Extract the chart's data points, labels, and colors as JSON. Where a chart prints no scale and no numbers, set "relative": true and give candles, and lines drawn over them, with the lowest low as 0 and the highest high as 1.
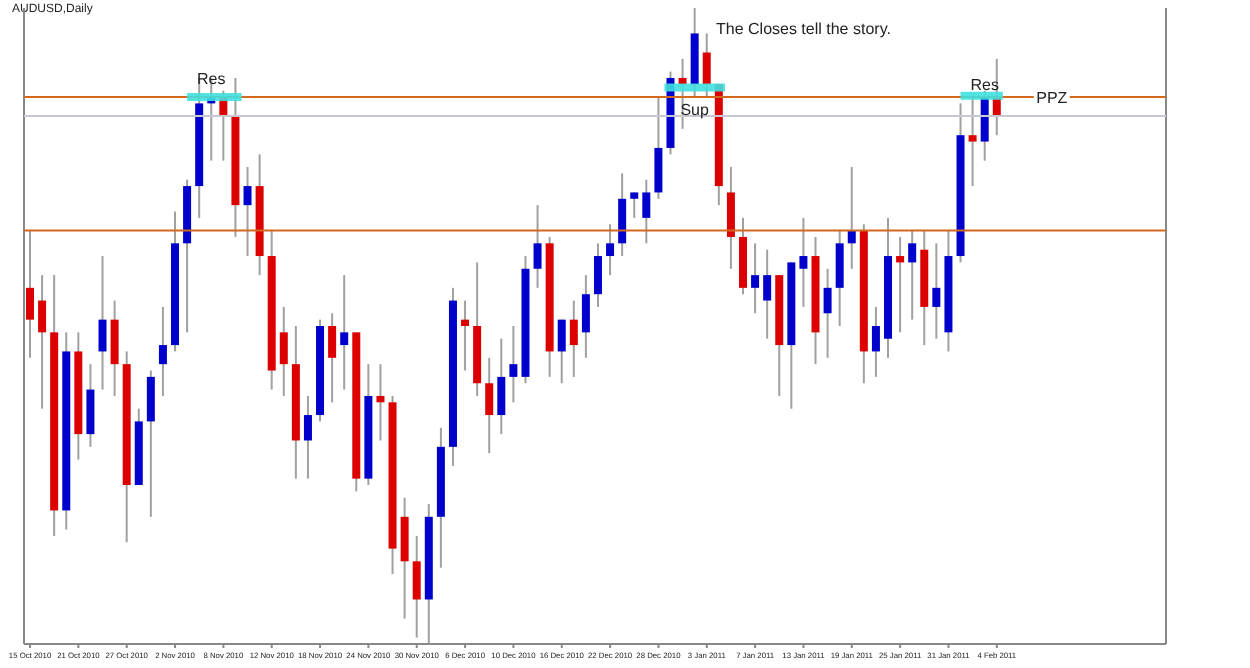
{
  "chart_data": {
    "type": "candlestick",
    "title": "AUDUSD,Daily",
    "relative": true,
    "grid": false,
    "categories": [
      "15 Oct 2010",
      null,
      null,
      null,
      "21 Oct 2010",
      null,
      null,
      null,
      "27 Oct 2010",
      null,
      null,
      null,
      "2 Nov 2010",
      null,
      null,
      null,
      "8 Nov 2010",
      null,
      null,
      null,
      "12 Nov 2010",
      null,
      null,
      null,
      "18 Nov 2010",
      null,
      null,
      null,
      "24 Nov 2010",
      null,
      null,
      null,
      "30 Nov 2010",
      null,
      null,
      null,
      "6 Dec 2010",
      null,
      null,
      null,
      "10 Dec 2010",
      null,
      null,
      null,
      "16 Dec 2010",
      null,
      null,
      null,
      "22 Dec 2010",
      null,
      null,
      null,
      "28 Dec 2010",
      null,
      null,
      null,
      "3 Jan 2011",
      null,
      null,
      null,
      "7 Jan 2011",
      null,
      null,
      null,
      "13 Jan 2011",
      null,
      null,
      null,
      "19 Jan 2011",
      null,
      null,
      null,
      "25 Jan 2011",
      null,
      null,
      null,
      "31 Jan 2011",
      null,
      null,
      null,
      "4 Feb 2011"
    ],
    "ohlc": [
      [
        0.56,
        0.65,
        0.45,
        0.51
      ],
      [
        0.54,
        0.58,
        0.37,
        0.49
      ],
      [
        0.49,
        0.58,
        0.17,
        0.21
      ],
      [
        0.21,
        0.49,
        0.18,
        0.46
      ],
      [
        0.46,
        0.49,
        0.29,
        0.33
      ],
      [
        0.33,
        0.44,
        0.31,
        0.4
      ],
      [
        0.46,
        0.61,
        0.4,
        0.51
      ],
      [
        0.51,
        0.54,
        0.39,
        0.44
      ],
      [
        0.44,
        0.46,
        0.16,
        0.25
      ],
      [
        0.25,
        0.37,
        0.25,
        0.35
      ],
      [
        0.35,
        0.43,
        0.2,
        0.42
      ],
      [
        0.44,
        0.53,
        0.39,
        0.47
      ],
      [
        0.47,
        0.68,
        0.46,
        0.63
      ],
      [
        0.63,
        0.73,
        0.49,
        0.72
      ],
      [
        0.72,
        0.89,
        0.67,
        0.85
      ],
      [
        0.85,
        0.89,
        0.76,
        0.86
      ],
      [
        0.86,
        0.87,
        0.76,
        0.83
      ],
      [
        0.83,
        0.89,
        0.64,
        0.69
      ],
      [
        0.69,
        0.75,
        0.61,
        0.72
      ],
      [
        0.72,
        0.77,
        0.58,
        0.61
      ],
      [
        0.61,
        0.65,
        0.4,
        0.43
      ],
      [
        0.49,
        0.53,
        0.39,
        0.44
      ],
      [
        0.44,
        0.5,
        0.26,
        0.32
      ],
      [
        0.32,
        0.39,
        0.26,
        0.36
      ],
      [
        0.36,
        0.51,
        0.35,
        0.5
      ],
      [
        0.5,
        0.52,
        0.38,
        0.45
      ],
      [
        0.47,
        0.58,
        0.4,
        0.49
      ],
      [
        0.49,
        0.49,
        0.24,
        0.26
      ],
      [
        0.26,
        0.44,
        0.25,
        0.39
      ],
      [
        0.39,
        0.44,
        0.32,
        0.38
      ],
      [
        0.38,
        0.39,
        0.11,
        0.15
      ],
      [
        0.2,
        0.23,
        0.04,
        0.13
      ],
      [
        0.13,
        0.17,
        0.01,
        0.07
      ],
      [
        0.07,
        0.22,
        0,
        0.2
      ],
      [
        0.2,
        0.34,
        0.12,
        0.31
      ],
      [
        0.31,
        0.56,
        0.28,
        0.54
      ],
      [
        0.51,
        0.54,
        0.43,
        0.5
      ],
      [
        0.5,
        0.6,
        0.39,
        0.41
      ],
      [
        0.41,
        0.45,
        0.3,
        0.36
      ],
      [
        0.36,
        0.48,
        0.33,
        0.42
      ],
      [
        0.42,
        0.5,
        0.38,
        0.44
      ],
      [
        0.42,
        0.61,
        0.41,
        0.59
      ],
      [
        0.59,
        0.69,
        0.56,
        0.63
      ],
      [
        0.63,
        0.64,
        0.42,
        0.46
      ],
      [
        0.46,
        0.51,
        0.41,
        0.51
      ],
      [
        0.51,
        0.54,
        0.42,
        0.47
      ],
      [
        0.49,
        0.58,
        0.45,
        0.55
      ],
      [
        0.55,
        0.63,
        0.53,
        0.61
      ],
      [
        0.61,
        0.66,
        0.58,
        0.63
      ],
      [
        0.63,
        0.74,
        0.61,
        0.7
      ],
      [
        0.7,
        0.71,
        0.67,
        0.71
      ],
      [
        0.67,
        0.73,
        0.63,
        0.71
      ],
      [
        0.71,
        0.86,
        0.7,
        0.78
      ],
      [
        0.78,
        0.9,
        0.77,
        0.89
      ],
      [
        0.89,
        0.92,
        0.81,
        0.88
      ],
      [
        0.88,
        1,
        0.86,
        0.96
      ],
      [
        0.93,
        0.96,
        0.86,
        0.88
      ],
      [
        0.88,
        0.88,
        0.69,
        0.72
      ],
      [
        0.71,
        0.75,
        0.59,
        0.64
      ],
      [
        0.64,
        0.67,
        0.55,
        0.56
      ],
      [
        0.56,
        0.63,
        0.52,
        0.58
      ],
      [
        0.54,
        0.62,
        0.48,
        0.58
      ],
      [
        0.58,
        0.58,
        0.39,
        0.47
      ],
      [
        0.47,
        0.6,
        0.37,
        0.6
      ],
      [
        0.59,
        0.67,
        0.53,
        0.61
      ],
      [
        0.61,
        0.64,
        0.44,
        0.49
      ],
      [
        0.52,
        0.59,
        0.45,
        0.56
      ],
      [
        0.56,
        0.65,
        0.5,
        0.63
      ],
      [
        0.63,
        0.75,
        0.59,
        0.65
      ],
      [
        0.65,
        0.66,
        0.41,
        0.46
      ],
      [
        0.46,
        0.53,
        0.42,
        0.5
      ],
      [
        0.48,
        0.67,
        0.45,
        0.61
      ],
      [
        0.61,
        0.64,
        0.49,
        0.6
      ],
      [
        0.6,
        0.65,
        0.51,
        0.63
      ],
      [
        0.62,
        0.65,
        0.47,
        0.53
      ],
      [
        0.53,
        0.63,
        0.48,
        0.56
      ],
      [
        0.49,
        0.65,
        0.46,
        0.61
      ],
      [
        0.61,
        0.85,
        0.6,
        0.8
      ],
      [
        0.8,
        0.86,
        0.72,
        0.79
      ],
      [
        0.79,
        0.87,
        0.76,
        0.86
      ],
      [
        0.86,
        0.92,
        0.8,
        0.83
      ]
    ],
    "colors": [
      "#dd0000",
      "#dd0000",
      "#dd0000",
      "#0000cc",
      "#dd0000",
      "#0000cc",
      "#0000cc",
      "#dd0000",
      "#dd0000",
      "#0000cc",
      "#0000cc",
      "#0000cc",
      "#0000cc",
      "#0000cc",
      "#0000cc",
      "#0000cc",
      "#dd0000",
      "#dd0000",
      "#0000cc",
      "#dd0000",
      "#dd0000",
      "#dd0000",
      "#dd0000",
      "#0000cc",
      "#0000cc",
      "#dd0000",
      "#0000cc",
      "#dd0000",
      "#0000cc",
      "#dd0000",
      "#dd0000",
      "#dd0000",
      "#dd0000",
      "#0000cc",
      "#0000cc",
      "#0000cc",
      "#dd0000",
      "#dd0000",
      "#dd0000",
      "#0000cc",
      "#0000cc",
      "#0000cc",
      "#0000cc",
      "#dd0000",
      "#0000cc",
      "#dd0000",
      "#0000cc",
      "#0000cc",
      "#0000cc",
      "#0000cc",
      "#0000cc",
      "#0000cc",
      "#0000cc",
      "#0000cc",
      "#dd0000",
      "#0000cc",
      "#dd0000",
      "#dd0000",
      "#dd0000",
      "#dd0000",
      "#0000cc",
      "#0000cc",
      "#dd0000",
      "#0000cc",
      "#0000cc",
      "#dd0000",
      "#0000cc",
      "#0000cc",
      "#0000cc",
      "#dd0000",
      "#0000cc",
      "#0000cc",
      "#dd0000",
      "#0000cc",
      "#dd0000",
      "#0000cc",
      "#0000cc",
      "#0000cc",
      "#dd0000",
      "#0000cc",
      "#dd0000"
    ],
    "ref_lines": [
      {
        "axis": "y",
        "value": 0.86,
        "label": "PPZ",
        "color": "#d2691e"
      },
      {
        "axis": "y",
        "value": 0.65,
        "label": null,
        "color": "#d2691e"
      },
      {
        "axis": "y",
        "value": 0.83,
        "label": null,
        "color": "#c8c8d0"
      }
    ],
    "annotations": [
      "The Closes tell the story.",
      {
        "text": "Res",
        "y": 0.89
      },
      {
        "text": "Sup",
        "y": 0.84
      },
      {
        "text": "Res",
        "y": 0.88
      }
    ]
  }
}
